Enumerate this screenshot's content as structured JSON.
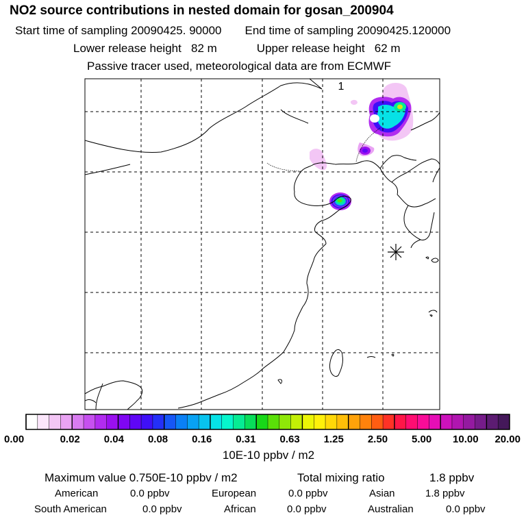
{
  "header": {
    "title": "NO2 source contributions in nested domain for gosan_200904",
    "start_label": "Start time of sampling 20090425. 90000",
    "end_label": "End time of sampling 20090425.120000",
    "lower_label": "Lower release height   82 m",
    "upper_label": "Upper release height   62 m",
    "note": "Passive tracer used, meteorological data are from ECMWF"
  },
  "map": {
    "panel_number": "1",
    "release_marker": "asterisk-marker"
  },
  "colorbar": {
    "tick_labels": [
      "0.00",
      "0.02",
      "0.04",
      "0.08",
      "0.16",
      "0.31",
      "0.63",
      "1.25",
      "2.50",
      "5.00",
      "10.00",
      "20.00"
    ],
    "unit_label": "10E-10 ppbv / m2",
    "colors": [
      "#ffffff",
      "#fbe6fb",
      "#f3c6f5",
      "#e9a3f3",
      "#d97cf1",
      "#c650ef",
      "#b12cef",
      "#9a10ef",
      "#7f06f2",
      "#5f06f5",
      "#3f10f8",
      "#2430f8",
      "#1657f7",
      "#0a80f5",
      "#08a2f3",
      "#08c3ee",
      "#06e2e6",
      "#06f5cc",
      "#06eb94",
      "#08de5a",
      "#18d818",
      "#5ae008",
      "#8fe808",
      "#c3ef06",
      "#ecf506",
      "#fff00a",
      "#ffd808",
      "#ffbe08",
      "#ffa20a",
      "#ff820c",
      "#ff5d12",
      "#ff3226",
      "#ff1648",
      "#ff0d72",
      "#f80c98",
      "#e60eb6",
      "#cc12bc",
      "#b016b0",
      "#941aa0",
      "#761c8a",
      "#5c1c72",
      "#44185a"
    ]
  },
  "stats": {
    "maximum_label": "Maximum value  0.750E-10 ppbv / m2",
    "total_label": "Total mixing ratio",
    "total_value": "1.8 ppbv",
    "regions": [
      {
        "name": "American",
        "value": "0.0 ppbv"
      },
      {
        "name": "European",
        "value": "0.0 ppbv"
      },
      {
        "name": "Asian",
        "value": "1.8 ppbv"
      },
      {
        "name": "South American",
        "value": "0.0 ppbv"
      },
      {
        "name": "African",
        "value": "0.0 ppbv"
      },
      {
        "name": "Australian",
        "value": "0.0 ppbv"
      }
    ]
  }
}
